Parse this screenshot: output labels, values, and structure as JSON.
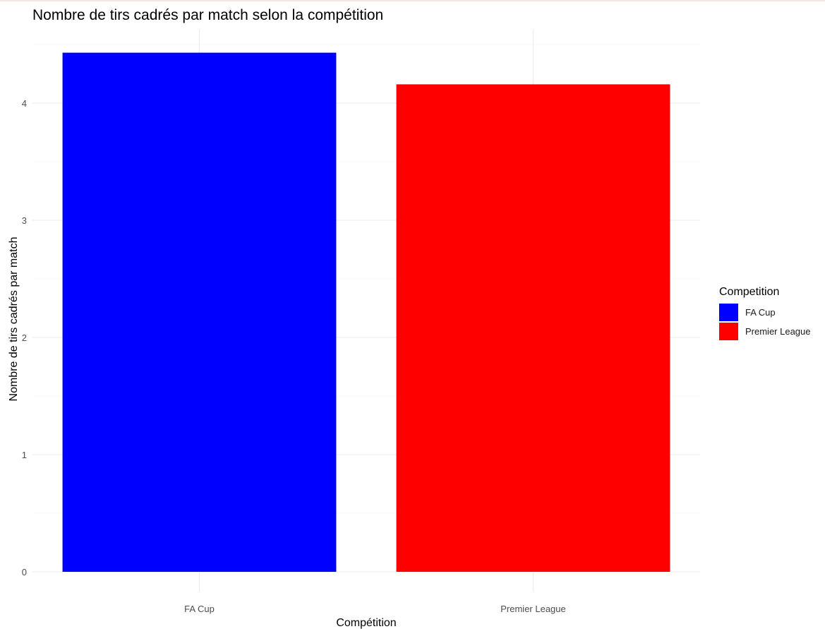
{
  "chart_data": {
    "type": "bar",
    "title": "Nombre de tirs cadrés par match selon la compétition",
    "xlabel": "Compétition",
    "ylabel": "Nombre de tirs cadrés par match",
    "categories": [
      "FA Cup",
      "Premier League"
    ],
    "values": [
      4.43,
      4.16
    ],
    "colors": [
      "#0000ff",
      "#ff0000"
    ],
    "ylim": [
      0,
      4.65
    ],
    "yticks": [
      0,
      1,
      2,
      3,
      4
    ],
    "grid": true,
    "legend": {
      "title": "Competition",
      "position": "right",
      "items": [
        {
          "label": "FA Cup",
          "color": "#0000ff"
        },
        {
          "label": "Premier League",
          "color": "#ff0000"
        }
      ]
    }
  }
}
